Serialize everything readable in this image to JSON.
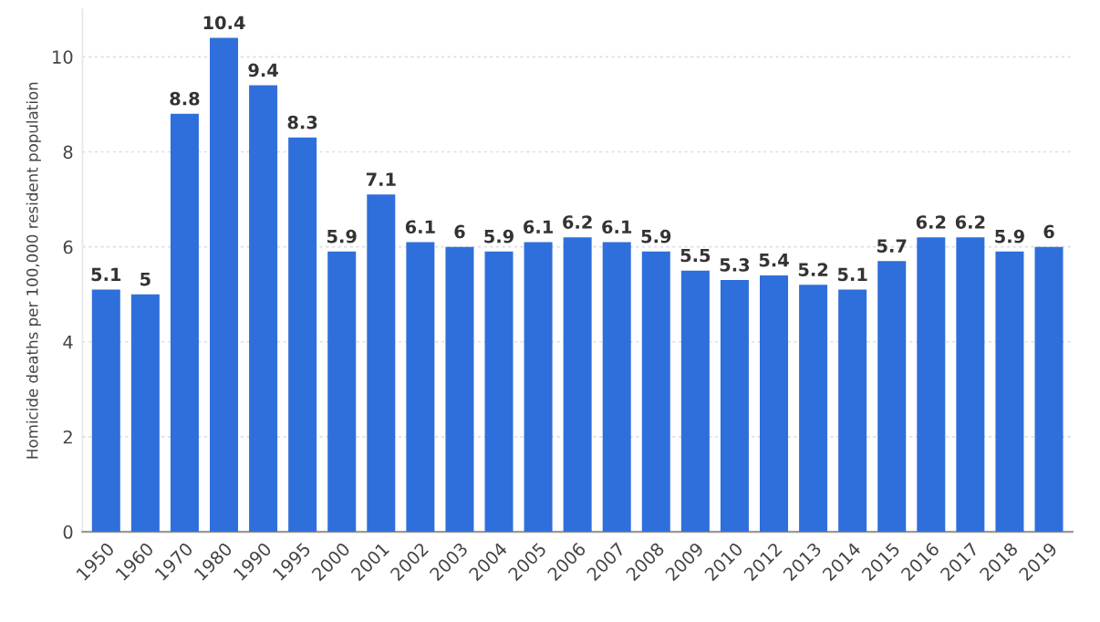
{
  "chart_data": {
    "type": "bar",
    "ylabel": "Homicide deaths per 100,000 resident population",
    "categories": [
      "1950",
      "1960",
      "1970",
      "1980",
      "1990",
      "1995",
      "2000",
      "2001",
      "2002",
      "2003",
      "2004",
      "2005",
      "2006",
      "2007",
      "2008",
      "2009",
      "2010",
      "2012",
      "2013",
      "2014",
      "2015",
      "2016",
      "2017",
      "2018",
      "2019"
    ],
    "values": [
      5.1,
      5,
      8.8,
      10.4,
      9.4,
      8.3,
      5.9,
      7.1,
      6.1,
      6,
      5.9,
      6.1,
      6.2,
      6.1,
      5.9,
      5.5,
      5.3,
      5.4,
      5.2,
      5.1,
      5.7,
      6.2,
      6.2,
      5.9,
      6
    ],
    "color": "#2f6fdb",
    "data_labels": true,
    "ylim": [
      0,
      11
    ],
    "yticks": [
      0,
      2,
      4,
      6,
      8,
      10
    ],
    "grid": "y"
  }
}
